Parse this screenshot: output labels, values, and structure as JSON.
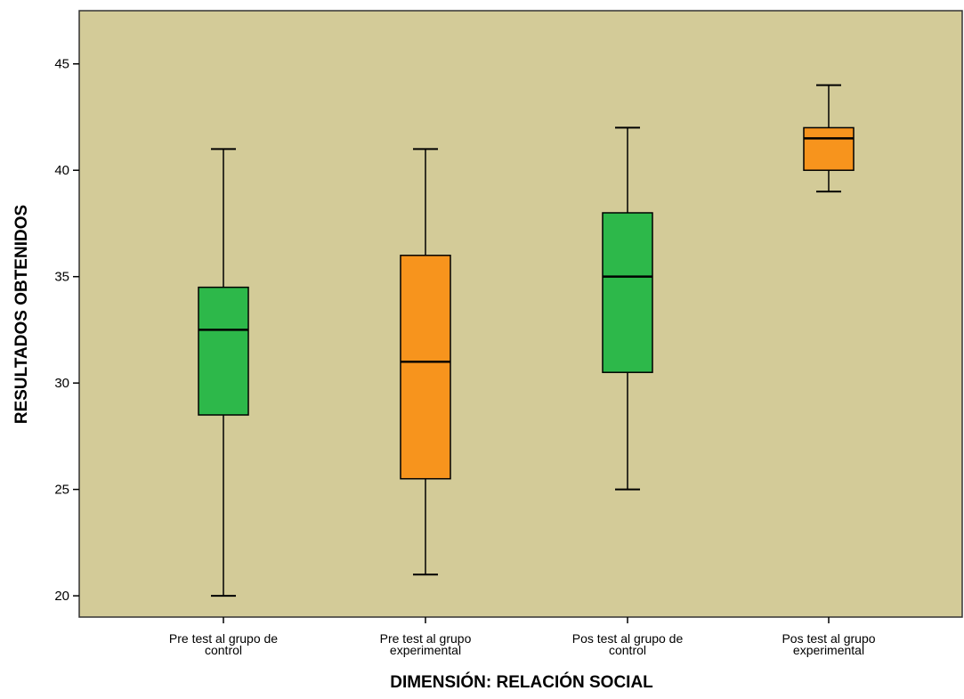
{
  "chart_data": {
    "type": "boxplot",
    "title": "",
    "xlabel": "DIMENSIÓN: RELACIÓN SOCIAL",
    "ylabel": "RESULTADOS OBTENIDOS",
    "ylim": [
      19,
      47.5
    ],
    "yticks": [
      20,
      25,
      30,
      35,
      40,
      45
    ],
    "grid": false,
    "background_color": "#d3cb98",
    "categories": [
      [
        "Pre test al grupo de",
        "control"
      ],
      [
        "Pre test al grupo",
        "experimental"
      ],
      [
        "Pos test al grupo de",
        "control"
      ],
      [
        "Pos test al grupo",
        "experimental"
      ]
    ],
    "boxes": [
      {
        "min": 20,
        "q1": 28.5,
        "median": 32.5,
        "q3": 34.5,
        "max": 41,
        "color": "#2db84a"
      },
      {
        "min": 21,
        "q1": 25.5,
        "median": 31,
        "q3": 36,
        "max": 41,
        "color": "#f7941d"
      },
      {
        "min": 25,
        "q1": 30.5,
        "median": 35,
        "q3": 38,
        "max": 42,
        "color": "#2db84a"
      },
      {
        "min": 39,
        "q1": 40,
        "median": 41.5,
        "q3": 42,
        "max": 44,
        "color": "#f7941d"
      }
    ]
  }
}
